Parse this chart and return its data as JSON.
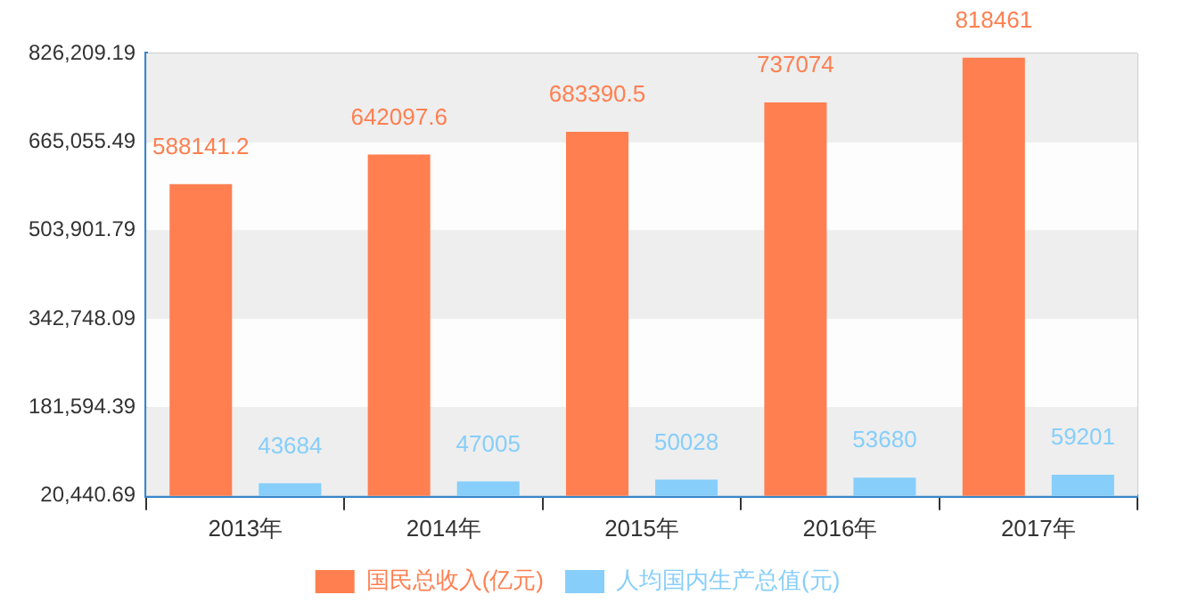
{
  "chart_data": {
    "type": "bar",
    "categories": [
      "2013年",
      "2014年",
      "2015年",
      "2016年",
      "2017年"
    ],
    "series": [
      {
        "name": "国民总收入(亿元)",
        "color": "#ff7f50",
        "values": [
          588141.2,
          642097.6,
          683390.5,
          737074,
          818461
        ]
      },
      {
        "name": "人均国内生产总值(元)",
        "color": "#87cefa",
        "values": [
          43684,
          47005,
          50028,
          53680,
          59201
        ]
      }
    ],
    "ylim": [
      20440.69,
      826209.19
    ],
    "yticks": [
      {
        "value": 20440.69,
        "label": "20,440.69"
      },
      {
        "value": 181594.39,
        "label": "181,594.39"
      },
      {
        "value": 342748.09,
        "label": "342,748.09"
      },
      {
        "value": 503901.79,
        "label": "503,901.79"
      },
      {
        "value": 665055.49,
        "label": "665,055.49"
      },
      {
        "value": 826209.19,
        "label": "826,209.19"
      }
    ],
    "grid": true,
    "legend": "bottom",
    "data_labels": true
  }
}
